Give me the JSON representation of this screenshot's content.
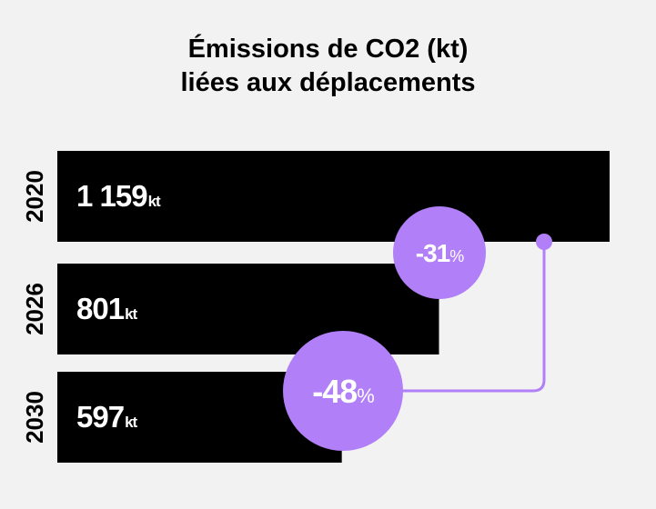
{
  "title_line1": "Émissions de CO2 (kt)",
  "title_line2": "liées aux déplacements",
  "colors": {
    "background": "#f2f2f2",
    "bar": "#000000",
    "accent": "#b17ff7",
    "text": "#ffffff"
  },
  "chart_data": {
    "type": "bar",
    "orientation": "horizontal",
    "title": "Émissions de CO2 (kt) liées aux déplacements",
    "unit": "kt",
    "categories": [
      "2020",
      "2026",
      "2030"
    ],
    "values": [
      1159,
      801,
      597
    ],
    "value_labels": [
      "1 159",
      "801",
      "597"
    ],
    "annotations": [
      {
        "label": "-31",
        "suffix": "%",
        "between": [
          "2020",
          "2026"
        ]
      },
      {
        "label": "-48",
        "suffix": "%",
        "between": [
          "2020",
          "2030"
        ]
      }
    ]
  }
}
